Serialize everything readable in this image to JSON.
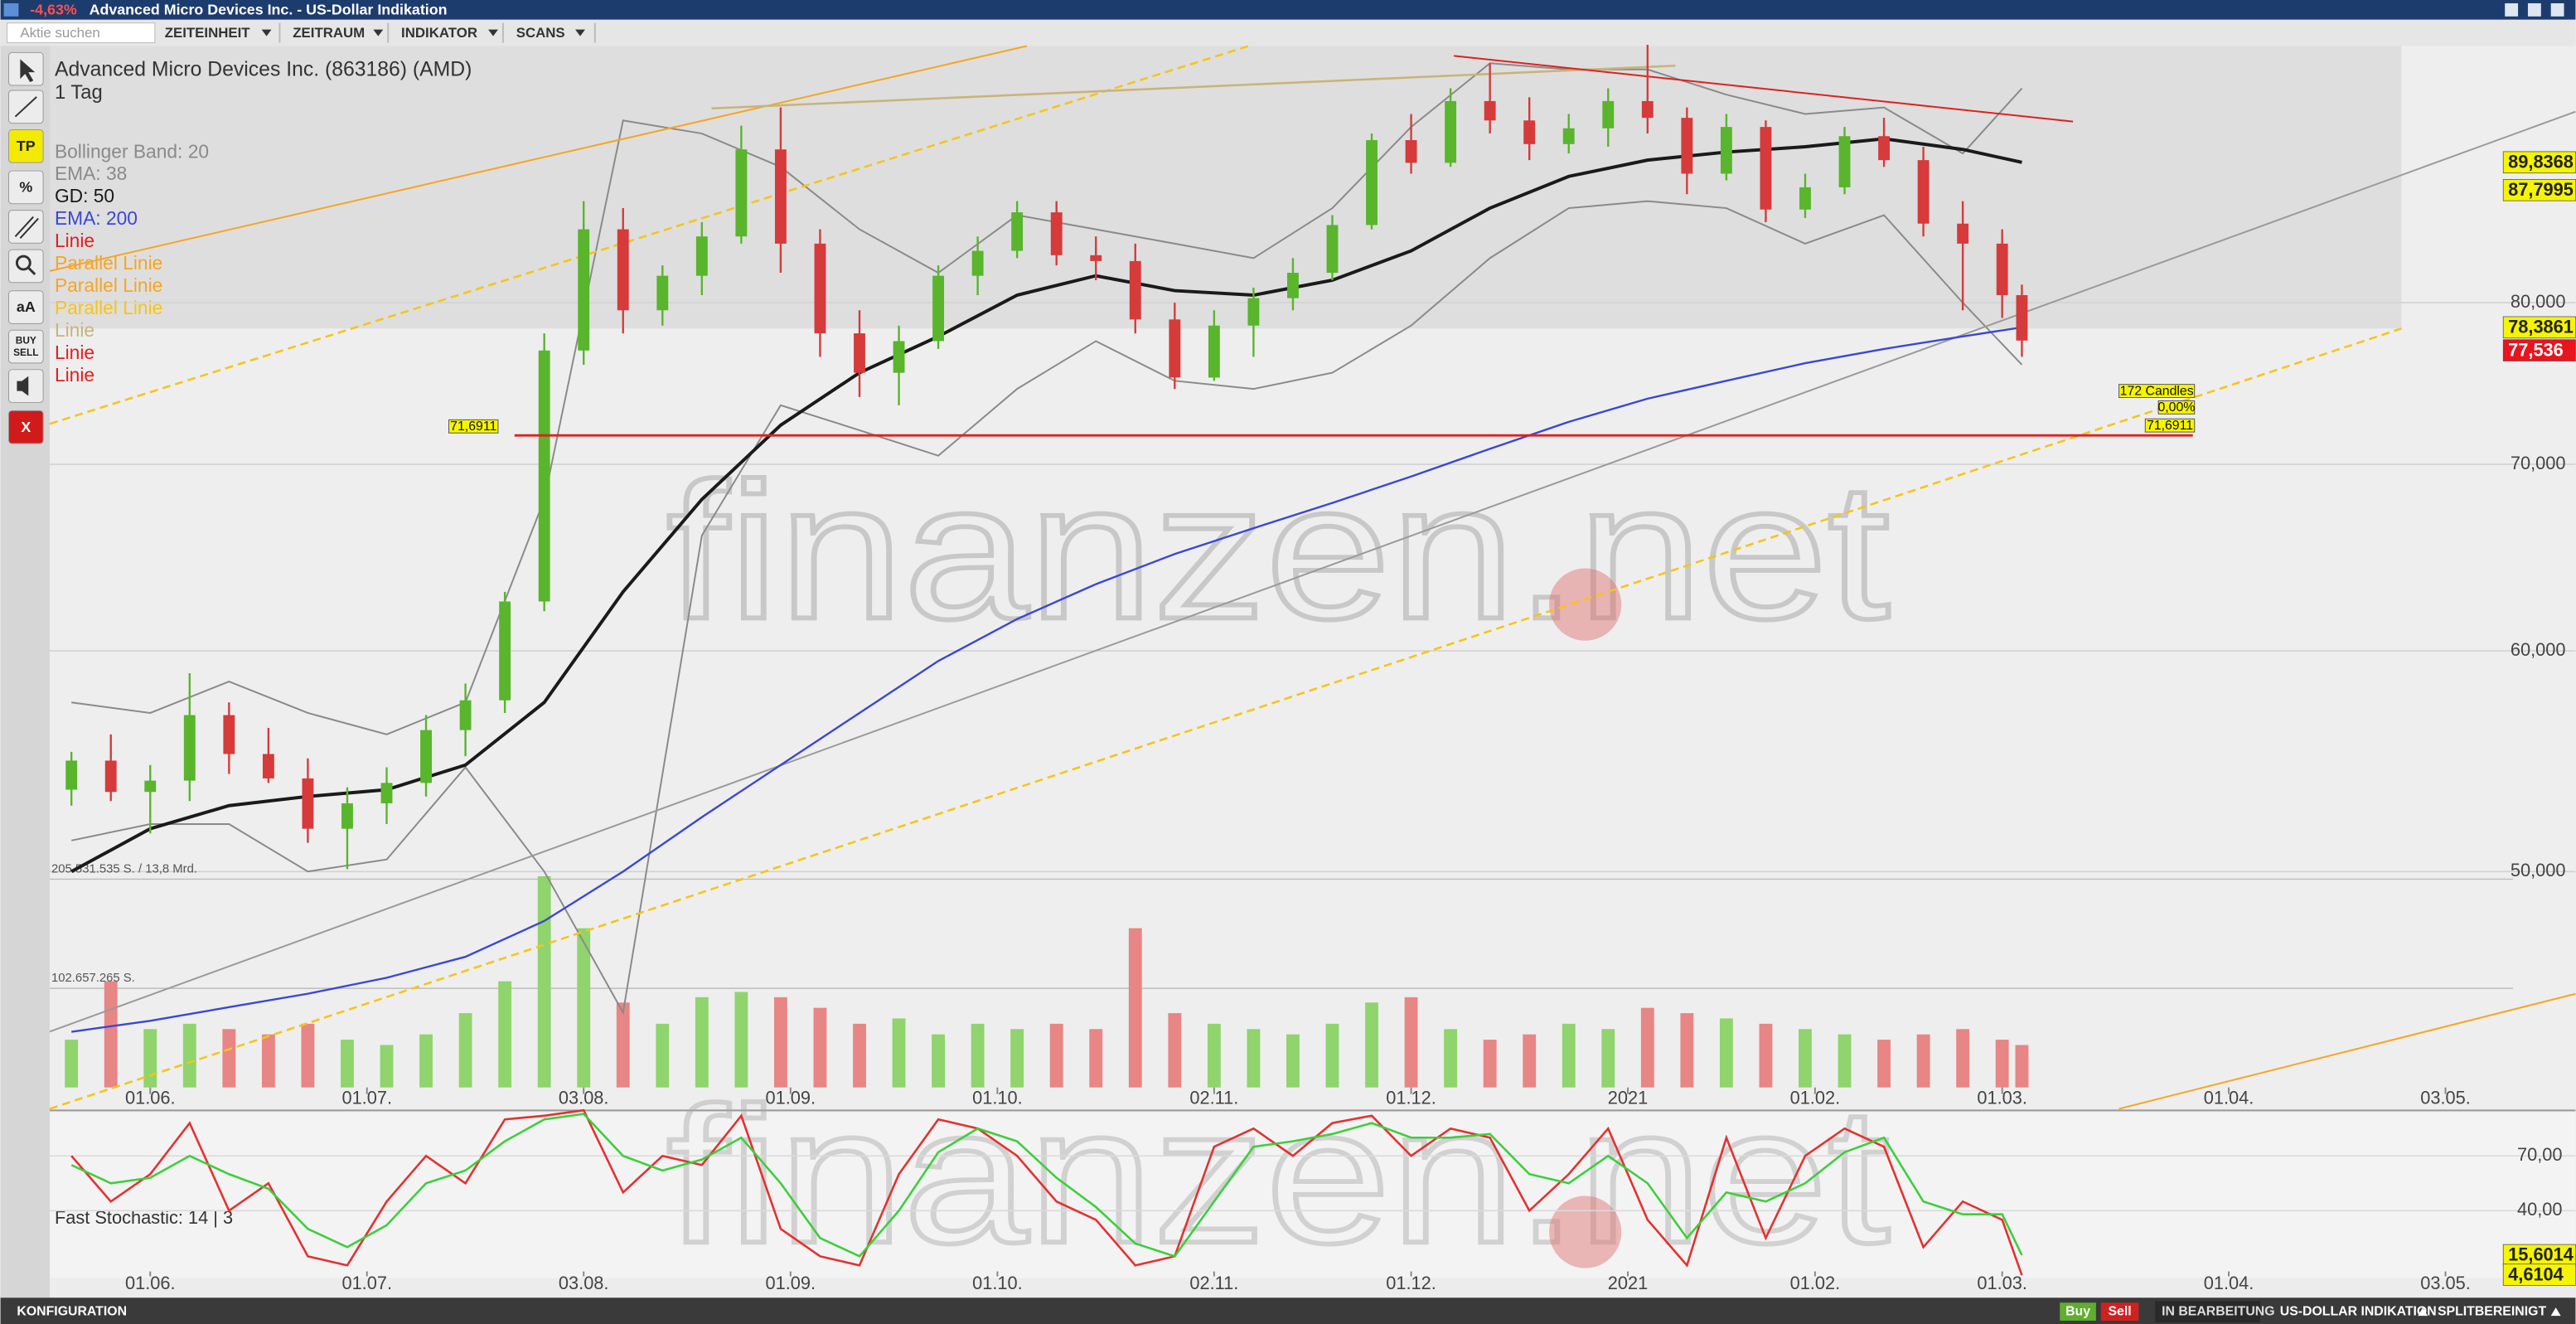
{
  "window": {
    "change": "-4,63%",
    "title": "Advanced Micro Devices Inc. - US-Dollar Indikation"
  },
  "toolbar": {
    "search_placeholder": "Aktie suchen",
    "menus": [
      "ZEITEINHEIT",
      "ZEITRAUM",
      "INDIKATOR",
      "SCANS"
    ]
  },
  "tools": [
    "TP",
    "%",
    "aA",
    "BUY",
    "SELL",
    "X"
  ],
  "watermark": "finanzen.net",
  "status_bar": {
    "left": "KONFIGURATION",
    "buy": "Buy",
    "sell": "Sell",
    "state": "IN BEARBEITUNG",
    "currency": "US-DOLLAR INDIKATION",
    "adjust": "SPLITBEREINIGT"
  },
  "chart_data": [
    {
      "type": "candlestick",
      "title": "Advanced Micro Devices Inc. (863186) (AMD)",
      "subtitle": "1 Tag",
      "log_scale": true,
      "grid": true,
      "up_color": "#58b52c",
      "down_color": "#d63a3a",
      "xlim": [
        -10.2,
        246.2
      ],
      "xticks": [
        {
          "value": 0,
          "label": "01.06."
        },
        {
          "value": 22,
          "label": "01.07."
        },
        {
          "value": 44,
          "label": "03.08."
        },
        {
          "value": 65,
          "label": "01.09."
        },
        {
          "value": 86,
          "label": "01.10."
        },
        {
          "value": 108,
          "label": "02.11."
        },
        {
          "value": 128,
          "label": "01.12."
        },
        {
          "value": 150,
          "label": "2021"
        },
        {
          "value": 169,
          "label": "01.02."
        },
        {
          "value": 188,
          "label": "01.03."
        },
        {
          "value": 211,
          "label": "01.04."
        },
        {
          "value": 233,
          "label": "03.05."
        }
      ],
      "ylim": [
        41.1,
        98.9
      ],
      "yticks": [
        {
          "value": 80,
          "label": "80,000"
        },
        {
          "value": 70,
          "label": "70,000"
        },
        {
          "value": 60,
          "label": "60,000"
        },
        {
          "value": 50,
          "label": "50,000"
        }
      ],
      "x": [
        -8,
        -4,
        0,
        4,
        8,
        12,
        16,
        20,
        24,
        28,
        32,
        36,
        40,
        44,
        48,
        52,
        56,
        60,
        64,
        68,
        72,
        76,
        80,
        84,
        88,
        92,
        96,
        100,
        104,
        108,
        112,
        116,
        120,
        124,
        128,
        132,
        136,
        140,
        144,
        148,
        152,
        156,
        160,
        164,
        168,
        172,
        176,
        180,
        184,
        188,
        190
      ],
      "open": [
        53.5,
        54.8,
        53.4,
        53.9,
        56.9,
        55.1,
        54.0,
        51.8,
        52.9,
        53.8,
        56.2,
        57.6,
        62.5,
        76.9,
        85.0,
        79.5,
        81.8,
        84.5,
        90.8,
        84.0,
        78.0,
        75.5,
        77.5,
        81.8,
        83.5,
        86.2,
        83.2,
        82.8,
        78.9,
        75.2,
        78.5,
        80.3,
        82.0,
        85.3,
        91.5,
        89.8,
        94.5,
        93.0,
        91.2,
        92.4,
        94.5,
        93.2,
        89.0,
        92.5,
        86.4,
        88.0,
        91.8,
        90.0,
        85.4,
        84.0,
        80.5
      ],
      "high": [
        55.2,
        56.0,
        54.6,
        58.9,
        57.5,
        56.3,
        54.9,
        53.6,
        54.5,
        56.9,
        58.4,
        63.0,
        78.0,
        87.0,
        86.5,
        82.5,
        85.5,
        92.6,
        94.0,
        85.0,
        79.5,
        78.5,
        82.5,
        84.5,
        87.0,
        87.0,
        84.5,
        84.0,
        80.0,
        79.5,
        81.0,
        83.0,
        86.0,
        92.0,
        93.5,
        95.5,
        97.5,
        94.8,
        93.5,
        95.5,
        99.0,
        94.0,
        93.5,
        93.0,
        89.0,
        92.5,
        93.2,
        91.0,
        87.0,
        85.0,
        81.2
      ],
      "low": [
        52.8,
        53.0,
        51.6,
        53.0,
        54.2,
        53.8,
        51.2,
        50.1,
        52.0,
        53.2,
        55.0,
        57.0,
        62.0,
        76.0,
        78.0,
        78.5,
        80.5,
        84.0,
        82.0,
        76.5,
        74.0,
        73.5,
        77.0,
        80.5,
        83.0,
        82.5,
        81.5,
        78.0,
        74.5,
        75.0,
        76.5,
        79.5,
        81.5,
        85.0,
        89.0,
        89.5,
        92.0,
        90.0,
        90.5,
        91.0,
        92.0,
        87.5,
        88.5,
        85.5,
        85.8,
        87.5,
        89.5,
        84.5,
        79.5,
        79.0,
        76.5
      ],
      "close": [
        54.8,
        53.4,
        53.9,
        56.9,
        55.1,
        54.0,
        51.8,
        52.9,
        53.8,
        56.2,
        57.6,
        62.5,
        76.9,
        85.0,
        79.5,
        81.8,
        84.5,
        90.8,
        84.0,
        78.0,
        75.5,
        77.5,
        81.8,
        83.5,
        86.2,
        83.2,
        82.8,
        78.9,
        75.2,
        78.5,
        80.3,
        82.0,
        85.3,
        91.5,
        89.8,
        94.5,
        93.0,
        91.2,
        92.4,
        94.5,
        93.2,
        89.0,
        92.5,
        86.4,
        88.0,
        91.8,
        90.0,
        85.4,
        84.0,
        80.5,
        77.536
      ],
      "volume": {
        "up_color": "#8fd46c",
        "down_color": "#e88585",
        "vlim": [
          0,
          212
        ],
        "ticks": [
          {
            "value": 102.657265,
            "label": "102.657.265 S."
          },
          {
            "value": 205.531535,
            "label": "205.531.535 S. / 13,8 Mrd."
          }
        ],
        "values": [
          45,
          100,
          55,
          60,
          55,
          50,
          60,
          45,
          40,
          50,
          70,
          100,
          199,
          150,
          80,
          60,
          85,
          90,
          85,
          75,
          60,
          65,
          50,
          60,
          55,
          60,
          55,
          150,
          70,
          60,
          55,
          50,
          60,
          80,
          85,
          55,
          45,
          50,
          60,
          55,
          75,
          70,
          65,
          60,
          55,
          50,
          45,
          50,
          55,
          45,
          40
        ]
      },
      "series": [
        {
          "name": "Bollinger Band: 20",
          "color": "#8a8a8a",
          "x": [
            -8,
            0,
            8,
            16,
            24,
            32,
            40,
            48,
            56,
            64,
            72,
            80,
            88,
            96,
            104,
            112,
            120,
            128,
            136,
            144,
            152,
            160,
            168,
            176,
            184,
            190
          ],
          "upper": [
            57.5,
            57.0,
            58.5,
            57.0,
            56.0,
            57.5,
            68.0,
            93.0,
            92.0,
            89.5,
            85.0,
            82.0,
            86.0,
            85.0,
            84.0,
            83.0,
            86.5,
            92.5,
            97.5,
            97.0,
            97.0,
            95.0,
            93.5,
            94.0,
            90.5,
            95.5
          ],
          "lower": [
            51.3,
            52.0,
            52.0,
            50.0,
            50.5,
            54.5,
            50.0,
            44.5,
            66.0,
            73.5,
            72.0,
            70.5,
            74.5,
            77.5,
            75.0,
            74.5,
            75.5,
            78.5,
            83.0,
            86.5,
            87.0,
            86.5,
            84.0,
            86.0,
            80.0,
            76.0
          ]
        },
        {
          "name": "EMA: 38",
          "color": "#8a8a8a"
        },
        {
          "name": "GD: 50",
          "color": "#1a1a1a",
          "x": [
            -8,
            0,
            8,
            16,
            24,
            32,
            40,
            48,
            56,
            64,
            72,
            80,
            88,
            96,
            104,
            112,
            120,
            128,
            136,
            144,
            152,
            160,
            168,
            176,
            184,
            190
          ],
          "values": [
            50.0,
            51.8,
            52.8,
            53.2,
            53.5,
            54.6,
            57.5,
            63.0,
            68.0,
            72.3,
            75.5,
            77.8,
            80.5,
            81.8,
            80.8,
            80.5,
            81.5,
            83.5,
            86.5,
            88.8,
            90.0,
            90.6,
            91.0,
            91.6,
            90.8,
            89.8368
          ]
        },
        {
          "name": "EMA: 200",
          "color": "#3a46d8",
          "x": [
            -8,
            0,
            8,
            16,
            24,
            32,
            40,
            48,
            56,
            64,
            72,
            80,
            88,
            96,
            104,
            112,
            120,
            128,
            136,
            144,
            152,
            160,
            168,
            176,
            184,
            190
          ],
          "values": [
            43.8,
            44.2,
            44.7,
            45.2,
            45.8,
            46.6,
            48.0,
            50.0,
            52.3,
            54.6,
            57.0,
            59.5,
            61.6,
            63.4,
            65.0,
            66.4,
            67.8,
            69.3,
            70.9,
            72.5,
            73.9,
            75.0,
            76.1,
            77.0,
            77.8,
            78.3861
          ]
        }
      ],
      "drawings": [
        {
          "name": "Linie",
          "color": "#e02020"
        },
        {
          "name": "Parallel Linie",
          "color": "#f5a623"
        },
        {
          "name": "Parallel Linie",
          "color": "#f5a623"
        },
        {
          "name": "Parallel Linie",
          "color": "#f5c518"
        },
        {
          "name": "Linie",
          "color": "#c8b47a"
        },
        {
          "name": "Linie",
          "color": "#e02020",
          "value": 71.6911,
          "value_label": "71,6911",
          "candles_label": "172 Candles",
          "change_label": "0,00%"
        },
        {
          "name": "Linie",
          "color": "#e02020"
        }
      ],
      "price_markers": [
        {
          "value": 89.8368,
          "label": "89,8368",
          "color": "#f5f500"
        },
        {
          "value": 87.7995,
          "label": "87,7995",
          "color": "#f5f500"
        },
        {
          "value": 78.3861,
          "label": "78,3861",
          "color": "#f5f500"
        },
        {
          "value": 77.536,
          "label": "77,536",
          "color": "#e8141e"
        }
      ]
    },
    {
      "type": "line",
      "title": "Fast Stochastic: 14 | 3",
      "xlim": [
        -10.2,
        246.2
      ],
      "xticks": [
        {
          "value": 0,
          "label": "01.06."
        },
        {
          "value": 22,
          "label": "01.07."
        },
        {
          "value": 44,
          "label": "03.08."
        },
        {
          "value": 65,
          "label": "01.09."
        },
        {
          "value": 86,
          "label": "01.10."
        },
        {
          "value": 108,
          "label": "02.11."
        },
        {
          "value": 128,
          "label": "01.12."
        },
        {
          "value": 150,
          "label": "2021"
        },
        {
          "value": 169,
          "label": "01.02."
        },
        {
          "value": 188,
          "label": "01.03."
        },
        {
          "value": 211,
          "label": "01.04."
        },
        {
          "value": 233,
          "label": "03.05."
        }
      ],
      "ylim": [
        4,
        94
      ],
      "yticks": [
        {
          "value": 70,
          "label": "70,00"
        },
        {
          "value": 40,
          "label": "40,00"
        }
      ],
      "x": [
        -8,
        -4,
        0,
        4,
        8,
        12,
        16,
        20,
        24,
        28,
        32,
        36,
        40,
        44,
        48,
        52,
        56,
        60,
        64,
        68,
        72,
        76,
        80,
        84,
        88,
        92,
        96,
        100,
        104,
        108,
        112,
        116,
        120,
        124,
        128,
        132,
        136,
        140,
        144,
        148,
        152,
        156,
        160,
        164,
        168,
        172,
        176,
        180,
        184,
        188,
        190
      ],
      "series": [
        {
          "color": "#e53030",
          "values": [
            70,
            45,
            60,
            88,
            40,
            55,
            15,
            10,
            45,
            70,
            55,
            90,
            92,
            95,
            50,
            70,
            65,
            92,
            30,
            15,
            10,
            60,
            90,
            85,
            70,
            45,
            35,
            10,
            15,
            75,
            85,
            70,
            88,
            92,
            70,
            85,
            80,
            40,
            60,
            85,
            35,
            10,
            80,
            25,
            70,
            85,
            75,
            20,
            45,
            35,
            4.6104
          ]
        },
        {
          "color": "#3ccf3c",
          "values": [
            65,
            55,
            58,
            70,
            60,
            52,
            30,
            20,
            32,
            55,
            62,
            78,
            90,
            93,
            70,
            62,
            68,
            80,
            55,
            25,
            15,
            40,
            72,
            85,
            78,
            58,
            42,
            22,
            15,
            45,
            75,
            78,
            82,
            88,
            80,
            80,
            82,
            60,
            55,
            70,
            55,
            25,
            50,
            45,
            55,
            72,
            80,
            45,
            38,
            38,
            15.6014
          ]
        }
      ],
      "price_markers": [
        {
          "value": 15.6014,
          "label": "15,6014",
          "color": "#f5f500"
        },
        {
          "value": 4.6104,
          "label": "4,6104",
          "color": "#f5f500"
        }
      ]
    }
  ]
}
